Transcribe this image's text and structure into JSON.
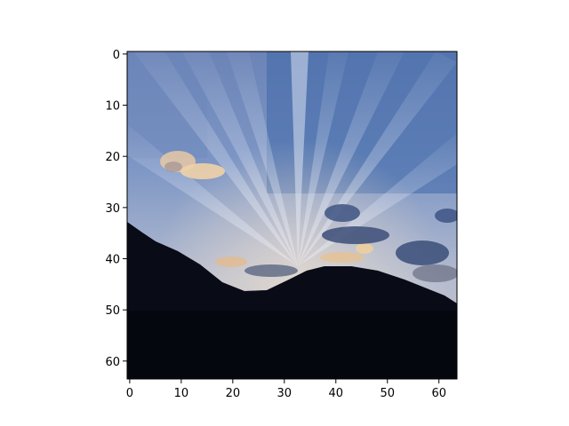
{
  "image_panel": {
    "subject": "sunset-sky-with-crepuscular-rays-over-dark-hills",
    "grid_size": [
      64,
      64
    ],
    "x_axis": {
      "min": -0.5,
      "max": 63.5,
      "ticks": [
        0,
        10,
        20,
        30,
        40,
        50,
        60
      ]
    },
    "y_axis": {
      "min": -0.5,
      "max": 63.5,
      "ticks": [
        0,
        10,
        20,
        30,
        40,
        50,
        60
      ],
      "inverted": true
    },
    "tick_labels_x": [
      "0",
      "10",
      "20",
      "30",
      "40",
      "50",
      "60"
    ],
    "tick_labels_y": [
      "0",
      "10",
      "20",
      "30",
      "40",
      "50",
      "60"
    ],
    "colors": {
      "sky_top": "#5a78ad",
      "sky_mid": "#7f98c6",
      "sky_horizon": "#b9bfd0",
      "ray_light": "#c9d2e6",
      "cloud_warm": "#e9c79c",
      "cloud_dark": "#35456a",
      "hill_dark": "#060810"
    }
  }
}
